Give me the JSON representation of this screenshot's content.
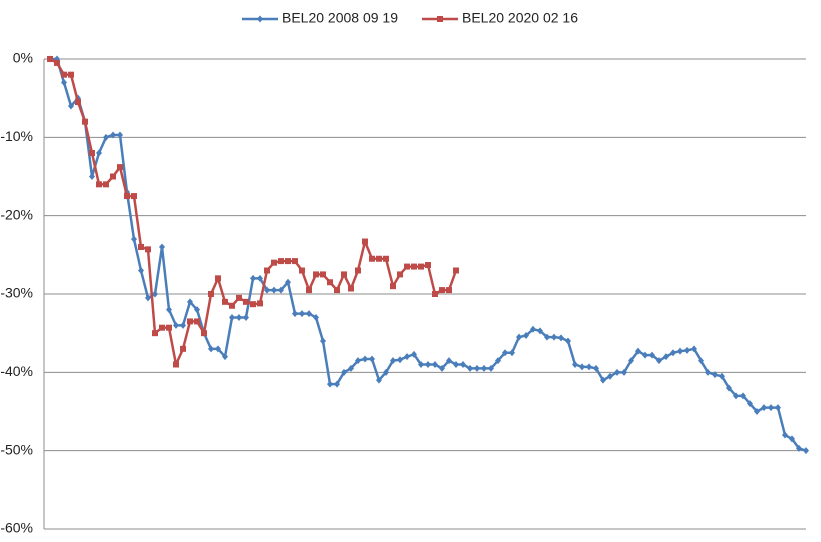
{
  "chart_data": {
    "type": "line",
    "ylim": [
      -60,
      0
    ],
    "yticks": [
      {
        "value": 0,
        "label": "0%"
      },
      {
        "value": -10,
        "label": "-10%"
      },
      {
        "value": -20,
        "label": "-20%"
      },
      {
        "value": -30,
        "label": "-30%"
      },
      {
        "value": -40,
        "label": "-40%"
      },
      {
        "value": -50,
        "label": "-50%"
      },
      {
        "value": -60,
        "label": "-60%"
      }
    ],
    "grid": true,
    "legend": "top",
    "series": [
      {
        "name": "BEL20 2008 09 19",
        "color": "#4a7ebb",
        "marker": "diamond",
        "values": [
          0,
          0,
          -3,
          -6,
          -5,
          -8,
          -15,
          -12,
          -10,
          -9.7,
          -9.7,
          -17,
          -23,
          -27,
          -30.5,
          -30,
          -24,
          -32,
          -34,
          -34,
          -31,
          -32,
          -35,
          -37,
          -37,
          -38,
          -33,
          -33,
          -33,
          -28,
          -28,
          -29.5,
          -29.5,
          -29.5,
          -28.5,
          -32.5,
          -32.5,
          -32.5,
          -33,
          -36,
          -41.5,
          -41.5,
          -40,
          -39.5,
          -38.5,
          -38.3,
          -38.3,
          -41,
          -40,
          -38.5,
          -38.4,
          -38,
          -37.7,
          -39,
          -39,
          -39,
          -39.5,
          -38.5,
          -39,
          -39,
          -39.5,
          -39.5,
          -39.5,
          -39.5,
          -38.5,
          -37.5,
          -37.5,
          -35.5,
          -35.3,
          -34.5,
          -34.7,
          -35.5,
          -35.5,
          -35.6,
          -36,
          -39,
          -39.3,
          -39.3,
          -39.5,
          -41,
          -40.5,
          -40,
          -40,
          -38.5,
          -37.3,
          -37.8,
          -37.8,
          -38.5,
          -38,
          -37.5,
          -37.3,
          -37.2,
          -37,
          -38.5,
          -40,
          -40.3,
          -40.5,
          -42,
          -43,
          -43,
          -44,
          -45,
          -44.5,
          -44.5,
          -44.5,
          -48,
          -48.5,
          -49.7,
          -50
        ]
      },
      {
        "name": "BEL20 2020 02 16",
        "color": "#be4b48",
        "marker": "square",
        "values": [
          0,
          -0.5,
          -2,
          -2,
          -5.5,
          -8,
          -12,
          -16,
          -16,
          -15,
          -13.8,
          -17.5,
          -17.5,
          -24,
          -24.3,
          -35,
          -34.3,
          -34.3,
          -39,
          -37,
          -33.5,
          -33.5,
          -35,
          -30,
          -28,
          -31,
          -31.5,
          -30.5,
          -31,
          -31.3,
          -31.2,
          -27,
          -26,
          -25.8,
          -25.8,
          -25.8,
          -27,
          -29.5,
          -27.5,
          -27.5,
          -28.5,
          -29.5,
          -27.5,
          -29.3,
          -27,
          -23.3,
          -25.5,
          -25.5,
          -25.5,
          -29,
          -27.5,
          -26.5,
          -26.5,
          -26.5,
          -26.3,
          -30,
          -29.5,
          -29.5,
          -27
        ]
      }
    ]
  }
}
